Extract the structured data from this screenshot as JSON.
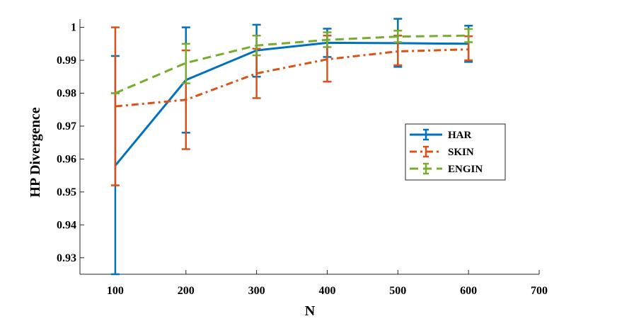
{
  "chart_data": {
    "type": "line",
    "title": "",
    "xlabel": "N",
    "ylabel": "HP Divergence",
    "xlim": [
      50,
      700
    ],
    "ylim": [
      0.925,
      1.0025
    ],
    "xticks": [
      100,
      200,
      300,
      400,
      500,
      600,
      700
    ],
    "xtick_labels": [
      "100",
      "200",
      "300",
      "400",
      "500",
      "600",
      "700"
    ],
    "yticks": [
      0.93,
      0.94,
      0.95,
      0.96,
      0.97,
      0.98,
      0.99,
      1.0
    ],
    "ytick_labels": [
      "0.93",
      "0.94",
      "0.95",
      "0.96",
      "0.97",
      "0.98",
      "0.99",
      "1"
    ],
    "grid": false,
    "legend_position": "center-right",
    "x": [
      100,
      200,
      300,
      400,
      500,
      600
    ],
    "series": [
      {
        "name": "HAR",
        "color": "#0072BD",
        "dash": "solid",
        "values": [
          0.958,
          0.984,
          0.993,
          0.9953,
          0.9952,
          0.995
        ],
        "err_low": [
          0.925,
          0.968,
          0.985,
          0.991,
          0.988,
          0.9895
        ],
        "err_high": [
          0.9913,
          1.0,
          1.0008,
          0.9996,
          1.0026,
          1.0005
        ]
      },
      {
        "name": "SKIN",
        "color": "#D95319",
        "dash": "dashdot",
        "values": [
          0.976,
          0.978,
          0.986,
          0.9903,
          0.9927,
          0.9933
        ],
        "err_low": [
          0.952,
          0.963,
          0.9785,
          0.9835,
          0.9885,
          0.99
        ],
        "err_high": [
          1.0,
          0.993,
          0.9935,
          0.9975,
          0.9975,
          0.9973
        ]
      },
      {
        "name": "ENGIN",
        "color": "#77AC30",
        "dash": "dashed",
        "values": [
          0.98,
          0.9892,
          0.9945,
          0.9962,
          0.9972,
          0.9975
        ],
        "err_low": [
          0.98,
          0.983,
          0.9915,
          0.994,
          0.9955,
          0.9955
        ],
        "err_high": [
          0.98,
          0.995,
          0.9975,
          0.9985,
          0.999,
          0.9995
        ]
      }
    ]
  }
}
